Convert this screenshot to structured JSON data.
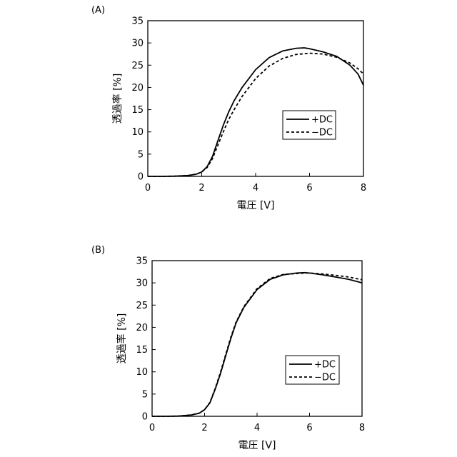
{
  "chart_data": [
    {
      "type": "line",
      "panel_label": "(A)",
      "xlabel": "電圧 [V]",
      "ylabel": "透過率 [%]",
      "xlim": [
        0,
        8
      ],
      "ylim": [
        0,
        35
      ],
      "xticks": [
        0,
        2,
        4,
        6,
        8
      ],
      "yticks": [
        0,
        5,
        10,
        15,
        20,
        25,
        30,
        35
      ],
      "legend_position": "middle-right",
      "series": [
        {
          "name": "+DC",
          "style": "solid",
          "x": [
            0,
            0.5,
            1.0,
            1.5,
            1.8,
            2.0,
            2.2,
            2.4,
            2.6,
            2.8,
            3.0,
            3.2,
            3.5,
            4.0,
            4.5,
            5.0,
            5.5,
            5.8,
            6.0,
            6.5,
            7.0,
            7.5,
            7.8,
            8.0
          ],
          "y": [
            0,
            0,
            0.05,
            0.2,
            0.5,
            1.0,
            2.2,
            4.5,
            8.0,
            11.5,
            14.5,
            17.0,
            20.0,
            24.0,
            26.7,
            28.2,
            28.8,
            28.9,
            28.7,
            28.0,
            27.0,
            25.0,
            23.0,
            20.5
          ]
        },
        {
          "name": "−DC",
          "style": "dashed",
          "x": [
            0,
            0.5,
            1.0,
            1.5,
            1.8,
            2.0,
            2.2,
            2.4,
            2.6,
            2.8,
            3.0,
            3.2,
            3.5,
            4.0,
            4.5,
            5.0,
            5.5,
            6.0,
            6.5,
            7.0,
            7.5,
            7.8,
            8.0
          ],
          "y": [
            0,
            0,
            0.05,
            0.2,
            0.5,
            1.0,
            2.0,
            4.0,
            7.0,
            10.0,
            12.8,
            15.0,
            18.0,
            22.0,
            24.8,
            26.5,
            27.4,
            27.7,
            27.5,
            26.8,
            25.5,
            24.2,
            23.0
          ]
        }
      ]
    },
    {
      "type": "line",
      "panel_label": "(B)",
      "xlabel": "電圧 [V]",
      "ylabel": "透過率 [%]",
      "xlim": [
        0,
        8
      ],
      "ylim": [
        0,
        35
      ],
      "xticks": [
        0,
        2,
        4,
        6,
        8
      ],
      "yticks": [
        0,
        5,
        10,
        15,
        20,
        25,
        30,
        35
      ],
      "legend_position": "lower-right",
      "series": [
        {
          "name": "+DC",
          "style": "solid",
          "x": [
            0,
            0.5,
            1.0,
            1.5,
            1.8,
            2.0,
            2.2,
            2.4,
            2.6,
            2.8,
            3.0,
            3.2,
            3.5,
            4.0,
            4.5,
            5.0,
            5.5,
            5.8,
            6.0,
            6.5,
            7.0,
            7.5,
            8.0
          ],
          "y": [
            0,
            0,
            0.05,
            0.3,
            0.7,
            1.5,
            3.0,
            6.0,
            9.5,
            13.5,
            17.5,
            21.0,
            24.5,
            28.5,
            30.8,
            31.8,
            32.2,
            32.3,
            32.2,
            31.8,
            31.3,
            30.8,
            30.0
          ]
        },
        {
          "name": "−DC",
          "style": "dashed",
          "x": [
            0,
            0.5,
            1.0,
            1.5,
            1.8,
            2.0,
            2.2,
            2.4,
            2.6,
            2.8,
            3.0,
            3.2,
            3.5,
            4.0,
            4.5,
            5.0,
            5.5,
            5.8,
            6.0,
            6.5,
            7.0,
            7.5,
            8.0
          ],
          "y": [
            0,
            0,
            0.05,
            0.3,
            0.7,
            1.5,
            3.1,
            6.2,
            9.8,
            13.8,
            17.8,
            21.2,
            24.7,
            28.7,
            31.0,
            31.9,
            32.1,
            32.2,
            32.2,
            32.0,
            31.7,
            31.3,
            30.7
          ]
        }
      ]
    }
  ]
}
